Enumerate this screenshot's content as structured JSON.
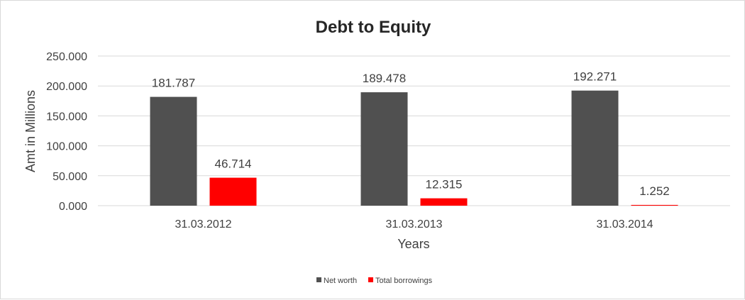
{
  "chart_data": {
    "type": "bar",
    "title": "Debt to Equity",
    "xlabel": "Years",
    "ylabel": "Amt in Millions",
    "categories": [
      "31.03.2012",
      "31.03.2013",
      "31.03.2014"
    ],
    "series": [
      {
        "name": "Net worth",
        "values": [
          181.787,
          189.478,
          192.271
        ],
        "color": "#505050"
      },
      {
        "name": "Total borrowings",
        "values": [
          46.714,
          12.315,
          1.252
        ],
        "color": "#ff0000"
      }
    ],
    "data_labels": [
      [
        "181.787",
        "189.478",
        "192.271"
      ],
      [
        "46.714",
        "12.315",
        "1.252"
      ]
    ],
    "ylim": [
      0,
      250
    ],
    "yticks": [
      0,
      50,
      100,
      150,
      200,
      250
    ],
    "ytick_labels": [
      "0.000",
      "50.000",
      "100.000",
      "150.000",
      "200.000",
      "250.000"
    ],
    "grid": true,
    "legend_position": "bottom",
    "colors": {
      "gridline": "#d9d9d9",
      "text": "#404040",
      "title": "#262626"
    }
  }
}
